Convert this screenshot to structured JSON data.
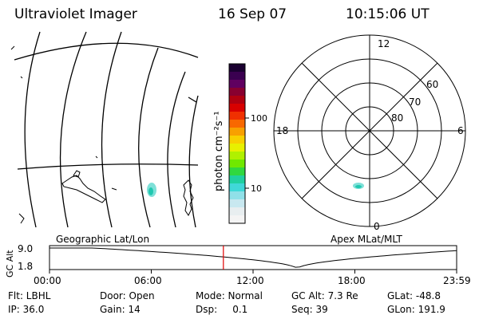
{
  "header": {
    "instrument": "Ultraviolet Imager",
    "date": "16 Sep 07",
    "time": "10:15:06 UT"
  },
  "map_label": "Geographic Lat/Lon",
  "polar": {
    "label": "Apex MLat/MLT",
    "mlt_labels": [
      "12",
      "18",
      "6",
      "0"
    ],
    "lat_labels": [
      "60",
      "70",
      "80"
    ]
  },
  "colorbar": {
    "label": "photon cm⁻²s⁻¹",
    "ticks": [
      "100",
      "10"
    ],
    "colors": [
      "#1a0030",
      "#3a0050",
      "#600060",
      "#880030",
      "#b00010",
      "#d80000",
      "#f03000",
      "#f86800",
      "#f8a000",
      "#f8d000",
      "#e8f000",
      "#b0f000",
      "#70e800",
      "#30d840",
      "#20d0a0",
      "#40d8d8",
      "#90e0e8",
      "#c8e8f0",
      "#e8eef0",
      "#f4f4f4"
    ]
  },
  "timeline": {
    "axis_label": "GC Alt",
    "alt_max": "9.0",
    "alt_min": "1.8",
    "ticks": [
      "00:00",
      "06:00",
      "12:00",
      "18:00",
      "23:59"
    ],
    "current_hour": 10.25
  },
  "footer": {
    "filter": "Flt: LBHL",
    "ip": "IP: 36.0",
    "door": "Door: Open",
    "gain": "Gain: 14",
    "mode": "Mode: Normal",
    "dsp": "Dsp:     0.1",
    "gc_alt": "GC Alt: 7.3 Re",
    "seq": "Seq: 39",
    "glat": "GLat: -48.8",
    "glon": "GLon: 191.9"
  }
}
